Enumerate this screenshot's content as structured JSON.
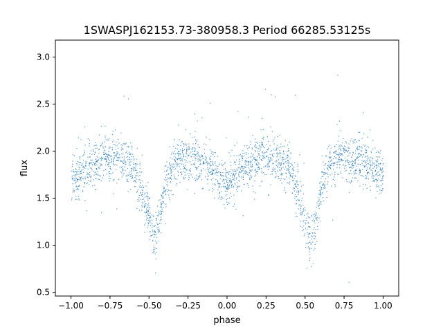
{
  "chart_data": {
    "type": "scatter",
    "title": "1SWASPJ162153.73-380958.3 Period 66285.53125s",
    "xlabel": "phase",
    "ylabel": "flux",
    "xlim": [
      -1.1,
      1.1
    ],
    "ylim": [
      0.46,
      3.18
    ],
    "xticks": [
      -1.0,
      -0.75,
      -0.5,
      -0.25,
      0.0,
      0.25,
      0.5,
      0.75,
      1.0
    ],
    "xtick_labels": [
      "−1.00",
      "−0.75",
      "−0.50",
      "−0.25",
      "0.00",
      "0.25",
      "0.50",
      "0.75",
      "1.00"
    ],
    "yticks": [
      0.5,
      1.0,
      1.5,
      2.0,
      2.5,
      3.0
    ],
    "ytick_labels": [
      "0.5",
      "1.0",
      "1.5",
      "2.0",
      "2.5",
      "3.0"
    ],
    "grid": false,
    "legend": "none",
    "marker_color": "#1f77b4",
    "light_curve_profile": {
      "phase": [
        -1.0,
        -0.9,
        -0.8,
        -0.75,
        -0.7,
        -0.65,
        -0.6,
        -0.55,
        -0.5,
        -0.47,
        -0.45,
        -0.42,
        -0.4,
        -0.35,
        -0.3,
        -0.25,
        -0.2,
        -0.15,
        -0.1,
        -0.05,
        0.0,
        0.05,
        0.1,
        0.15,
        0.2,
        0.25,
        0.3,
        0.35,
        0.4,
        0.45,
        0.5,
        0.53,
        0.55,
        0.58,
        0.6,
        0.65,
        0.7,
        0.75,
        0.8,
        0.85,
        0.9,
        0.95,
        1.0
      ],
      "flux": [
        1.72,
        1.8,
        1.9,
        1.93,
        1.93,
        1.9,
        1.82,
        1.6,
        1.3,
        1.08,
        1.12,
        1.4,
        1.62,
        1.85,
        1.92,
        1.94,
        1.93,
        1.88,
        1.8,
        1.72,
        1.68,
        1.74,
        1.82,
        1.88,
        1.92,
        1.94,
        1.92,
        1.88,
        1.8,
        1.58,
        1.3,
        1.08,
        1.12,
        1.4,
        1.62,
        1.85,
        1.92,
        1.94,
        1.93,
        1.9,
        1.85,
        1.78,
        1.72
      ],
      "scatter": 0.12
    }
  }
}
